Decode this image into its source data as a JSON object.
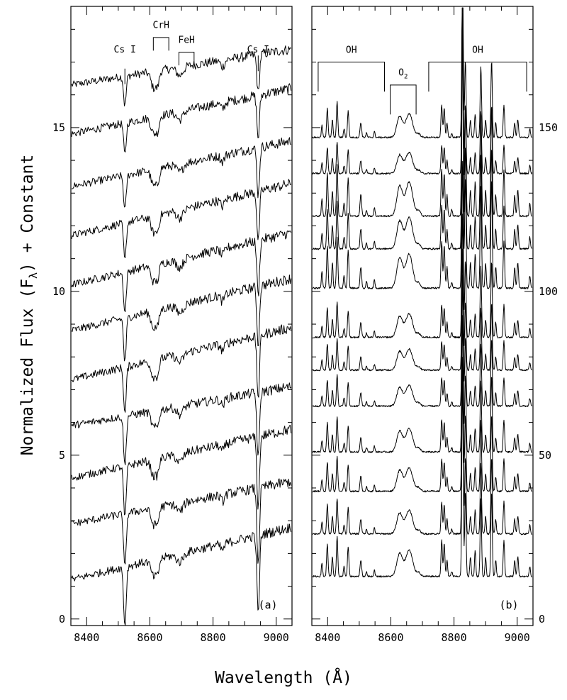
{
  "chart_data": [
    {
      "panel": "a",
      "type": "line",
      "panel_label": "(a)",
      "ylabel": "Normalized Flux (F",
      "ylabel_sub": "λ",
      "ylabel_tail": ") + Constant",
      "xlim": [
        8350,
        9050
      ],
      "ylim": [
        -0.2,
        18.7
      ],
      "xticks": [
        8400,
        8600,
        8800,
        9000
      ],
      "xtick_labels": [
        "8400",
        "8600",
        "8800",
        "9000"
      ],
      "yticks": [
        0,
        5,
        10,
        15
      ],
      "ytick_labels": [
        "0",
        "5",
        "10",
        "15"
      ],
      "ytick_side": "left",
      "noise": 0.16,
      "features": [
        {
          "label": "Cs I",
          "x": 8521,
          "type": "line",
          "y_top": 16.8,
          "y_text": 17.25
        },
        {
          "label": "CrH",
          "x": [
            8611,
            8660
          ],
          "type": "bracket",
          "y_bar": 17.75,
          "y_end": 17.35,
          "y_text": 17.95
        },
        {
          "label": "FeH",
          "x": [
            8692,
            8740
          ],
          "type": "bracket",
          "y_bar": 17.3,
          "y_end": 16.9,
          "y_text": 17.5
        },
        {
          "label": "Cs I",
          "x": 8943,
          "type": "line",
          "y_top": 17.2,
          "y_text": 17.25
        }
      ],
      "spectra": [
        {
          "start": 16.3,
          "end": 17.4,
          "amp": 1.0
        },
        {
          "start": 14.8,
          "end": 16.2,
          "amp": 1.1
        },
        {
          "start": 13.2,
          "end": 14.6,
          "amp": 1.2
        },
        {
          "start": 11.7,
          "end": 13.3,
          "amp": 1.3
        },
        {
          "start": 10.2,
          "end": 11.8,
          "amp": 1.4
        },
        {
          "start": 8.8,
          "end": 10.4,
          "amp": 1.5
        },
        {
          "start": 7.3,
          "end": 8.9,
          "amp": 1.6
        },
        {
          "start": 5.9,
          "end": 7.1,
          "amp": 1.7
        },
        {
          "start": 4.3,
          "end": 5.8,
          "amp": 1.8
        },
        {
          "start": 2.9,
          "end": 4.2,
          "amp": 1.9
        },
        {
          "start": 1.2,
          "end": 2.8,
          "amp": 2.0
        }
      ]
    },
    {
      "panel": "b",
      "type": "line",
      "panel_label": "(b)",
      "xlim": [
        8350,
        9050
      ],
      "ylim": [
        -2,
        187
      ],
      "xticks": [
        8400,
        8600,
        8800,
        9000
      ],
      "xtick_labels": [
        "8400",
        "8600",
        "8800",
        "9000"
      ],
      "yticks": [
        0,
        50,
        100,
        150
      ],
      "ytick_labels": [
        "0",
        "50",
        "100",
        "150"
      ],
      "ytick_side": "right",
      "noise": 0.25,
      "features": [
        {
          "label": "OH",
          "x": [
            8370,
            8580
          ],
          "type": "bracket",
          "y_bar": 170,
          "y_end": 161,
          "y_text": 172
        },
        {
          "label": "O2",
          "label_main": "O",
          "label_sub": "2",
          "x": [
            8598,
            8680
          ],
          "type": "bracket",
          "y_bar": 163,
          "y_end": 154,
          "y_text": 165
        },
        {
          "label": "OH",
          "x": [
            8720,
            9030
          ],
          "type": "bracket",
          "y_bar": 170,
          "y_end": 161,
          "y_text": 172
        }
      ],
      "spectra": [
        {
          "base": 147,
          "amp": 0.9
        },
        {
          "base": 136,
          "amp": 0.8
        },
        {
          "base": 123,
          "amp": 1.3
        },
        {
          "base": 113,
          "amp": 1.2
        },
        {
          "base": 101,
          "amp": 1.3
        },
        {
          "base": 86,
          "amp": 0.9
        },
        {
          "base": 76,
          "amp": 0.8
        },
        {
          "base": 65,
          "amp": 0.8
        },
        {
          "base": 51,
          "amp": 0.9
        },
        {
          "base": 39,
          "amp": 0.9
        },
        {
          "base": 26,
          "amp": 0.9
        },
        {
          "base": 13,
          "amp": 1.0
        }
      ]
    }
  ],
  "xlabel": "Wavelength (Å)"
}
